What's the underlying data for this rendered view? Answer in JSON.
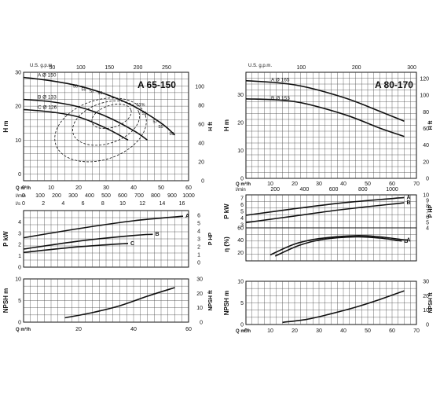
{
  "chart_data": [
    {
      "type": "line",
      "model": "A 65-150",
      "top_axis": {
        "label": "U.S. g.p.m.",
        "ticks": [
          "50",
          "100",
          "150",
          "200",
          "250"
        ]
      },
      "x_axes": [
        {
          "label": "Q m³/h",
          "ticks": [
            "0",
            "10",
            "20",
            "30",
            "40",
            "50",
            "60"
          ]
        },
        {
          "label": "l/min",
          "ticks": [
            "0",
            "100",
            "200",
            "300",
            "400",
            "500",
            "600",
            "700",
            "800",
            "900",
            "1000"
          ]
        },
        {
          "label": "l/s",
          "ticks": [
            "0",
            "2",
            "4",
            "6",
            "8",
            "10",
            "12",
            "14",
            "16"
          ]
        }
      ],
      "head": {
        "ylabel": "H m",
        "ylabel_right": "H ft",
        "ylim": [
          0,
          32
        ],
        "yticks": [
          "0",
          "10",
          "20",
          "30"
        ],
        "yticks_right": [
          "0",
          "20",
          "40",
          "60",
          "80",
          "100"
        ],
        "series": [
          {
            "name": "A",
            "label": "A Ø 150",
            "x": [
              0,
              10,
              20,
              30,
              40,
              50,
              55
            ],
            "y": [
              30.5,
              29.5,
              28,
              25.5,
              22,
              17,
              13.5
            ]
          },
          {
            "name": "B",
            "label": "B Ø 133",
            "x": [
              0,
              10,
              20,
              30,
              40,
              45
            ],
            "y": [
              24,
              23.3,
              21.8,
              19,
              14.8,
              12
            ]
          },
          {
            "name": "C",
            "label": "C Ø 126",
            "x": [
              0,
              10,
              20,
              30,
              38
            ],
            "y": [
              21,
              20.3,
              18.8,
              15.5,
              12
            ]
          }
        ],
        "efficiency_labels": [
          "50",
          "55",
          "57",
          "59",
          "61%",
          "59",
          "57",
          "55",
          "50"
        ]
      },
      "power": {
        "ylabel": "P kW",
        "ylabel_right": "P HP",
        "yticks": [
          "0",
          "1",
          "2",
          "3",
          "4"
        ],
        "yticks_right": [
          "0",
          "1",
          "2",
          "3",
          "4",
          "5",
          "6"
        ],
        "series": [
          {
            "name": "A",
            "x": [
              0,
              20,
              40,
              58
            ],
            "y": [
              2.6,
              3.4,
              4.1,
              4.5
            ]
          },
          {
            "name": "B",
            "x": [
              0,
              20,
              40,
              47
            ],
            "y": [
              1.6,
              2.3,
              2.8,
              2.9
            ]
          },
          {
            "name": "C",
            "x": [
              0,
              20,
              38
            ],
            "y": [
              1.3,
              1.8,
              2.1
            ]
          }
        ]
      },
      "npsh": {
        "ylabel": "NPSH m",
        "ylabel_right": "NPSH ft",
        "yticks": [
          "0",
          "5",
          "10"
        ],
        "yticks_right": [
          "0",
          "10",
          "20",
          "30"
        ],
        "xticks": [
          "20",
          "40",
          "60"
        ],
        "xlabel": "Q m³/h",
        "series": [
          {
            "name": "NPSH",
            "x": [
              15,
              25,
              35,
              45,
              55
            ],
            "y": [
              1,
              2.2,
              3.8,
              6,
              8
            ]
          }
        ]
      }
    },
    {
      "type": "line",
      "model": "A 80-170",
      "top_axis": {
        "label": "U.S. g.p.m.",
        "ticks": [
          "100",
          "200",
          "300"
        ]
      },
      "x_axes": [
        {
          "label": "Q m³/h",
          "ticks": [
            "0",
            "10",
            "20",
            "30",
            "40",
            "50",
            "60",
            "70"
          ]
        },
        {
          "label": "l/min",
          "ticks": [
            "200",
            "400",
            "600",
            "800",
            "1000"
          ]
        }
      ],
      "head": {
        "ylabel": "H m",
        "ylabel_right": "H ft",
        "ylim": [
          0,
          38
        ],
        "yticks": [
          "0",
          "10",
          "20",
          "30"
        ],
        "yticks_right": [
          "0",
          "20",
          "40",
          "60",
          "80",
          "100",
          "120"
        ],
        "series": [
          {
            "name": "A",
            "label": "A Ø 165",
            "x": [
              0,
              20,
              40,
              55,
              65
            ],
            "y": [
              35,
              33.5,
              29,
              24,
              20.5
            ]
          },
          {
            "name": "B",
            "label": "B Ø 153",
            "x": [
              0,
              20,
              40,
              55,
              65
            ],
            "y": [
              28.5,
              27.5,
              23,
              18,
              15
            ]
          }
        ]
      },
      "power": {
        "ylabel": "P kW",
        "ylabel_right": "P HP",
        "yticks": [
          "3",
          "4",
          "5",
          "6",
          "7"
        ],
        "yticks_right": [
          "4",
          "5",
          "6",
          "7",
          "8",
          "9",
          "10"
        ],
        "series": [
          {
            "name": "A",
            "x": [
              0,
              20,
              40,
              65
            ],
            "y": [
              4.4,
              5.4,
              6.3,
              7.1
            ]
          },
          {
            "name": "B",
            "x": [
              0,
              20,
              40,
              65
            ],
            "y": [
              3.3,
              4.3,
              5.3,
              6.3
            ]
          }
        ]
      },
      "efficiency": {
        "ylabel": "η (%)",
        "yticks": [
          "20",
          "40",
          "60"
        ],
        "series": [
          {
            "name": "A",
            "x": [
              10,
              20,
              30,
              45,
              55,
              65
            ],
            "y": [
              20,
              38,
              47,
              52,
              50,
              45
            ]
          },
          {
            "name": "B",
            "x": [
              12,
              22,
              32,
              45,
              55,
              64
            ],
            "y": [
              18,
              36,
              46,
              50,
              48,
              43
            ]
          }
        ]
      },
      "npsh": {
        "ylabel": "NPSH m",
        "ylabel_right": "NPSH ft",
        "yticks": [
          "0",
          "5",
          "10"
        ],
        "yticks_right": [
          "0",
          "10",
          "20",
          "30"
        ],
        "xticks": [
          "0",
          "10",
          "20",
          "30",
          "40",
          "50",
          "60",
          "70"
        ],
        "xlabel": "Q m³/h",
        "series": [
          {
            "name": "NPSH",
            "x": [
              15,
              25,
              35,
              45,
              55,
              65
            ],
            "y": [
              0.5,
              1.2,
              2.5,
              4,
              5.8,
              7.8
            ]
          }
        ]
      }
    }
  ]
}
